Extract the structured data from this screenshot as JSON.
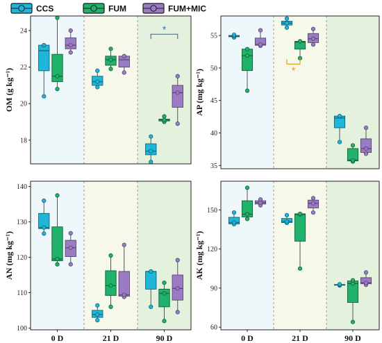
{
  "legend": [
    {
      "name": "CCS",
      "color": "#1fb6d9"
    },
    {
      "name": "FUM",
      "color": "#20b26a"
    },
    {
      "name": "FUM+MIC",
      "color": "#9b7bc4"
    }
  ],
  "period_fills": [
    "#eef8fb",
    "#f6f9ea",
    "#e3f1dd"
  ],
  "chart_data": [
    {
      "type": "box",
      "panel": "OM",
      "ylabel": "OM (g kg⁻¹)",
      "categories": [
        "0 D",
        "21 D",
        "90 D"
      ],
      "ylim": [
        16.7,
        24.8
      ],
      "yticks": [
        18,
        20,
        22,
        24
      ],
      "series": [
        {
          "name": "CCS",
          "boxes": [
            {
              "min": 20.4,
              "q1": 21.8,
              "median": 22.9,
              "q3": 23.2,
              "max": 23.2,
              "points": [
                20.4,
                23.2,
                23.2
              ]
            },
            {
              "min": 20.9,
              "q1": 21.0,
              "median": 21.2,
              "q3": 21.5,
              "max": 21.8,
              "points": [
                20.9,
                21.2,
                21.8
              ]
            },
            {
              "min": 16.8,
              "q1": 17.2,
              "median": 17.4,
              "q3": 17.8,
              "max": 18.2,
              "points": [
                16.8,
                17.4,
                18.2
              ]
            }
          ]
        },
        {
          "name": "FUM",
          "boxes": [
            {
              "min": 20.8,
              "q1": 21.2,
              "median": 21.5,
              "q3": 22.7,
              "max": 24.7,
              "points": [
                20.8,
                21.5,
                24.7
              ]
            },
            {
              "min": 21.9,
              "q1": 22.1,
              "median": 22.4,
              "q3": 22.6,
              "max": 23.0,
              "points": [
                21.9,
                22.4,
                23.0
              ]
            },
            {
              "min": 19.0,
              "q1": 19.05,
              "median": 19.1,
              "q3": 19.15,
              "max": 19.3,
              "points": [
                19.0,
                19.1,
                19.3
              ]
            }
          ]
        },
        {
          "name": "FUM+MIC",
          "boxes": [
            {
              "min": 22.8,
              "q1": 23.0,
              "median": 23.2,
              "q3": 23.6,
              "max": 24.0,
              "points": [
                22.8,
                23.2,
                24.0
              ]
            },
            {
              "min": 21.7,
              "q1": 22.0,
              "median": 22.4,
              "q3": 22.6,
              "max": 22.6,
              "points": [
                21.7,
                22.6,
                22.6
              ]
            },
            {
              "min": 18.9,
              "q1": 19.8,
              "median": 20.6,
              "q3": 21.0,
              "max": 21.5,
              "points": [
                18.9,
                20.6,
                21.5
              ]
            }
          ]
        }
      ],
      "annotations": [
        {
          "text": "*",
          "color": "#3a78c6",
          "category": "90 D",
          "from": "CCS",
          "to": "FUM+MIC",
          "y": 23.8,
          "style": "down"
        }
      ]
    },
    {
      "type": "box",
      "panel": "AP",
      "ylabel": "AP (mg kg⁻¹)",
      "categories": [
        "0 D",
        "21 D",
        "90 D"
      ],
      "ylim": [
        34.5,
        58.0
      ],
      "yticks": [
        35,
        40,
        45,
        50,
        55
      ],
      "series": [
        {
          "name": "CCS",
          "boxes": [
            {
              "min": 54.7,
              "q1": 54.8,
              "median": 54.9,
              "q3": 55.0,
              "max": 55.1,
              "points": [
                54.7,
                54.9,
                55.1
              ]
            },
            {
              "min": 56.2,
              "q1": 56.6,
              "median": 56.9,
              "q3": 57.2,
              "max": 57.6,
              "points": [
                56.2,
                56.9,
                57.6
              ]
            },
            {
              "min": 38.6,
              "q1": 40.8,
              "median": 42.3,
              "q3": 42.6,
              "max": 42.6,
              "points": [
                38.6,
                42.6,
                42.6
              ]
            }
          ]
        },
        {
          "name": "FUM",
          "boxes": [
            {
              "min": 46.5,
              "q1": 49.6,
              "median": 51.9,
              "q3": 52.9,
              "max": 52.9,
              "points": [
                46.5,
                51.9,
                52.9
              ]
            },
            {
              "min": 51.5,
              "q1": 52.9,
              "median": 54.0,
              "q3": 54.1,
              "max": 54.1,
              "points": [
                51.5,
                54.1,
                54.1
              ]
            },
            {
              "min": 35.6,
              "q1": 35.7,
              "median": 35.8,
              "q3": 37.6,
              "max": 38.1,
              "points": [
                35.6,
                35.8,
                38.1
              ]
            }
          ]
        },
        {
          "name": "FUM+MIC",
          "boxes": [
            {
              "min": 53.4,
              "q1": 53.5,
              "median": 53.6,
              "q3": 54.6,
              "max": 55.8,
              "points": [
                53.4,
                53.6,
                55.8
              ]
            },
            {
              "min": 53.6,
              "q1": 53.9,
              "median": 54.5,
              "q3": 55.3,
              "max": 56.0,
              "points": [
                53.6,
                54.5,
                56.0
              ]
            },
            {
              "min": 36.8,
              "q1": 37.0,
              "median": 37.6,
              "q3": 39.1,
              "max": 40.8,
              "points": [
                36.8,
                37.6,
                40.8
              ]
            }
          ]
        }
      ],
      "annotations": [
        {
          "text": "*",
          "color": "#e0a21a",
          "category": "21 D",
          "from": "CCS",
          "to": "FUM",
          "y": 50.6,
          "style": "up"
        }
      ]
    },
    {
      "type": "box",
      "panel": "AN",
      "ylabel": "AN (mg kg⁻¹)",
      "categories": [
        "0 D",
        "21 D",
        "90 D"
      ],
      "ylim": [
        99.5,
        141.5
      ],
      "yticks": [
        100,
        110,
        120,
        130,
        140
      ],
      "series": [
        {
          "name": "CCS",
          "boxes": [
            {
              "min": 126.7,
              "q1": 128.1,
              "median": 128.4,
              "q3": 132.4,
              "max": 136.0,
              "points": [
                126.7,
                128.4,
                136.0
              ]
            },
            {
              "min": 102.2,
              "q1": 103.0,
              "median": 103.8,
              "q3": 105.0,
              "max": 106.4,
              "points": [
                102.2,
                103.8,
                106.4
              ]
            },
            {
              "min": 106.0,
              "q1": 111.0,
              "median": 116.0,
              "q3": 116.0,
              "max": 116.0,
              "points": [
                106.0,
                116.0,
                116.0
              ]
            }
          ]
        },
        {
          "name": "FUM",
          "boxes": [
            {
              "min": 118.0,
              "q1": 119.0,
              "median": 119.5,
              "q3": 128.6,
              "max": 137.5,
              "points": [
                118.0,
                119.5,
                137.5
              ]
            },
            {
              "min": 106.0,
              "q1": 109.2,
              "median": 112.0,
              "q3": 116.2,
              "max": 120.5,
              "points": [
                106.0,
                112.0,
                120.5
              ]
            },
            {
              "min": 102.0,
              "q1": 106.0,
              "median": 109.8,
              "q3": 111.0,
              "max": 112.8,
              "points": [
                102.0,
                109.8,
                112.8
              ]
            }
          ]
        },
        {
          "name": "FUM+MIC",
          "boxes": [
            {
              "min": 118.0,
              "q1": 120.2,
              "median": 122.7,
              "q3": 124.8,
              "max": 126.8,
              "points": [
                118.0,
                122.7,
                126.8
              ]
            },
            {
              "min": 108.8,
              "q1": 109.0,
              "median": 109.4,
              "q3": 116.0,
              "max": 123.5,
              "points": [
                108.8,
                109.4,
                123.5
              ]
            },
            {
              "min": 104.5,
              "q1": 107.9,
              "median": 111.2,
              "q3": 115.0,
              "max": 119.2,
              "points": [
                104.5,
                111.2,
                119.2
              ]
            }
          ]
        }
      ],
      "annotations": []
    },
    {
      "type": "box",
      "panel": "AK",
      "ylabel": "AK (mg kg⁻¹)",
      "categories": [
        "0 D",
        "21 D",
        "90 D"
      ],
      "ylim": [
        58.0,
        172.0
      ],
      "yticks": [
        60,
        90,
        120,
        150
      ],
      "series": [
        {
          "name": "CCS",
          "boxes": [
            {
              "min": 139.0,
              "q1": 139.2,
              "median": 140.3,
              "q3": 144.3,
              "max": 148.0,
              "points": [
                139.0,
                140.3,
                148.0
              ]
            },
            {
              "min": 140.0,
              "q1": 140.3,
              "median": 141.0,
              "q3": 143.4,
              "max": 146.0,
              "points": [
                140.0,
                141.0,
                146.0
              ]
            },
            {
              "min": 92.0,
              "q1": 92.2,
              "median": 92.5,
              "q3": 92.8,
              "max": 93.0,
              "points": [
                92.0,
                92.5,
                93.0
              ]
            }
          ]
        },
        {
          "name": "FUM",
          "boxes": [
            {
              "min": 143.0,
              "q1": 144.6,
              "median": 146.7,
              "q3": 157.0,
              "max": 167.0,
              "points": [
                143.0,
                146.7,
                167.0
              ]
            },
            {
              "min": 105.0,
              "q1": 126.0,
              "median": 146.5,
              "q3": 147.0,
              "max": 147.0,
              "points": [
                105.0,
                146.5,
                147.0
              ]
            },
            {
              "min": 64.0,
              "q1": 79.0,
              "median": 93.5,
              "q3": 95.5,
              "max": 96.0,
              "points": [
                64.0,
                93.5,
                96.0
              ]
            }
          ]
        },
        {
          "name": "FUM+MIC",
          "boxes": [
            {
              "min": 153.5,
              "q1": 154.5,
              "median": 155.5,
              "q3": 157.0,
              "max": 158.0,
              "points": [
                153.5,
                155.5,
                158.0
              ]
            },
            {
              "min": 148.0,
              "q1": 151.5,
              "median": 155.0,
              "q3": 157.5,
              "max": 159.0,
              "points": [
                148.0,
                155.0,
                159.0
              ]
            },
            {
              "min": 92.5,
              "q1": 93.3,
              "median": 94.0,
              "q3": 98.0,
              "max": 102.0,
              "points": [
                92.5,
                94.0,
                102.0
              ]
            }
          ]
        }
      ],
      "annotations": []
    }
  ]
}
